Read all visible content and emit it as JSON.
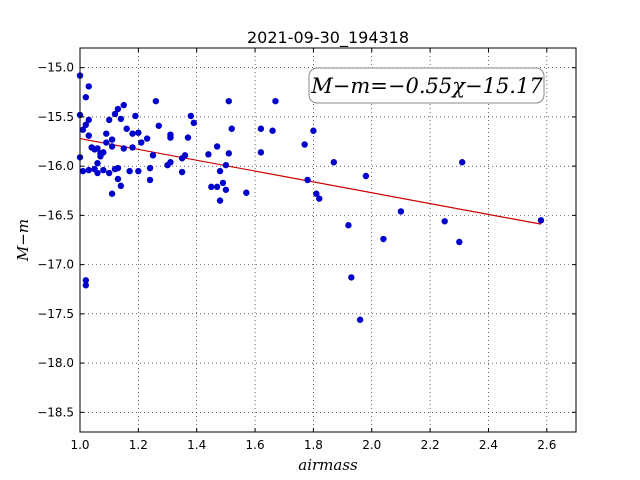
{
  "chart_data": {
    "type": "scatter",
    "title": "2021-09-30_194318",
    "xlabel": "airmass",
    "ylabel": "M−m",
    "xlim": [
      1.0,
      2.7
    ],
    "ylim": [
      -18.7,
      -14.8
    ],
    "y_inverted": true,
    "grid": true,
    "x_ticks": [
      1.0,
      1.2,
      1.4,
      1.6,
      1.8,
      2.0,
      2.2,
      2.4,
      2.6
    ],
    "x_tick_labels": [
      "1.0",
      "1.2",
      "1.4",
      "1.6",
      "1.8",
      "2.0",
      "2.2",
      "2.4",
      "2.6"
    ],
    "y_ticks": [
      -15.0,
      -15.5,
      -16.0,
      -16.5,
      -17.0,
      -17.5,
      -18.0,
      -18.5
    ],
    "y_tick_labels": [
      "−15.0",
      "−15.5",
      "−16.0",
      "−16.5",
      "−17.0",
      "−17.5",
      "−18.0",
      "−18.5"
    ],
    "annotation": "M−m=−0.55χ−15.17",
    "fit": {
      "slope": -0.55,
      "intercept": -15.17,
      "x_range": [
        1.0,
        2.58
      ],
      "color": "#cc0000"
    },
    "point_color": "#0000cc",
    "points": [
      [
        1.0,
        -15.08
      ],
      [
        1.0,
        -15.48
      ],
      [
        1.01,
        -15.63
      ],
      [
        1.0,
        -15.91
      ],
      [
        1.01,
        -16.05
      ],
      [
        1.02,
        -15.3
      ],
      [
        1.02,
        -15.58
      ],
      [
        1.03,
        -15.19
      ],
      [
        1.03,
        -15.53
      ],
      [
        1.03,
        -15.69
      ],
      [
        1.03,
        -16.04
      ],
      [
        1.04,
        -15.81
      ],
      [
        1.05,
        -15.83
      ],
      [
        1.05,
        -16.03
      ],
      [
        1.06,
        -16.07
      ],
      [
        1.06,
        -15.97
      ],
      [
        1.06,
        -15.82
      ],
      [
        1.07,
        -15.9
      ],
      [
        1.07,
        -15.87
      ],
      [
        1.08,
        -16.04
      ],
      [
        1.08,
        -15.86
      ],
      [
        1.09,
        -15.67
      ],
      [
        1.09,
        -15.76
      ],
      [
        1.1,
        -15.53
      ],
      [
        1.1,
        -16.07
      ],
      [
        1.11,
        -16.28
      ],
      [
        1.11,
        -15.8
      ],
      [
        1.11,
        -15.73
      ],
      [
        1.12,
        -16.03
      ],
      [
        1.12,
        -15.47
      ],
      [
        1.13,
        -16.02
      ],
      [
        1.13,
        -15.42
      ],
      [
        1.13,
        -16.13
      ],
      [
        1.14,
        -15.52
      ],
      [
        1.14,
        -16.2
      ],
      [
        1.15,
        -15.38
      ],
      [
        1.15,
        -15.82
      ],
      [
        1.16,
        -15.62
      ],
      [
        1.17,
        -16.05
      ],
      [
        1.18,
        -15.81
      ],
      [
        1.18,
        -15.67
      ],
      [
        1.19,
        -15.49
      ],
      [
        1.2,
        -15.66
      ],
      [
        1.2,
        -16.05
      ],
      [
        1.21,
        -15.76
      ],
      [
        1.23,
        -15.72
      ],
      [
        1.24,
        -16.14
      ],
      [
        1.25,
        -15.89
      ],
      [
        1.24,
        -16.02
      ],
      [
        1.26,
        -15.34
      ],
      [
        1.27,
        -15.59
      ],
      [
        1.3,
        -15.99
      ],
      [
        1.31,
        -15.71
      ],
      [
        1.31,
        -15.68
      ],
      [
        1.31,
        -15.96
      ],
      [
        1.35,
        -16.06
      ],
      [
        1.35,
        -15.92
      ],
      [
        1.36,
        -15.89
      ],
      [
        1.37,
        -15.71
      ],
      [
        1.38,
        -15.49
      ],
      [
        1.39,
        -15.56
      ],
      [
        1.44,
        -15.88
      ],
      [
        1.45,
        -16.21
      ],
      [
        1.47,
        -16.21
      ],
      [
        1.47,
        -15.8
      ],
      [
        1.48,
        -16.05
      ],
      [
        1.48,
        -16.35
      ],
      [
        1.49,
        -16.17
      ],
      [
        1.5,
        -15.99
      ],
      [
        1.5,
        -16.24
      ],
      [
        1.51,
        -15.87
      ],
      [
        1.51,
        -15.34
      ],
      [
        1.52,
        -15.62
      ],
      [
        1.57,
        -16.27
      ],
      [
        1.62,
        -15.62
      ],
      [
        1.62,
        -15.86
      ],
      [
        1.66,
        -15.64
      ],
      [
        1.67,
        -15.34
      ],
      [
        1.77,
        -15.78
      ],
      [
        1.78,
        -16.14
      ],
      [
        1.8,
        -15.64
      ],
      [
        1.81,
        -16.28
      ],
      [
        1.82,
        -16.33
      ],
      [
        1.87,
        -15.96
      ],
      [
        1.92,
        -16.6
      ],
      [
        1.93,
        -17.13
      ],
      [
        1.96,
        -17.56
      ],
      [
        1.98,
        -16.1
      ],
      [
        2.04,
        -16.74
      ],
      [
        2.1,
        -16.46
      ],
      [
        2.25,
        -16.56
      ],
      [
        2.3,
        -16.77
      ],
      [
        2.31,
        -15.96
      ],
      [
        2.58,
        -16.55
      ],
      [
        1.02,
        -17.21
      ],
      [
        1.02,
        -17.16
      ]
    ]
  }
}
